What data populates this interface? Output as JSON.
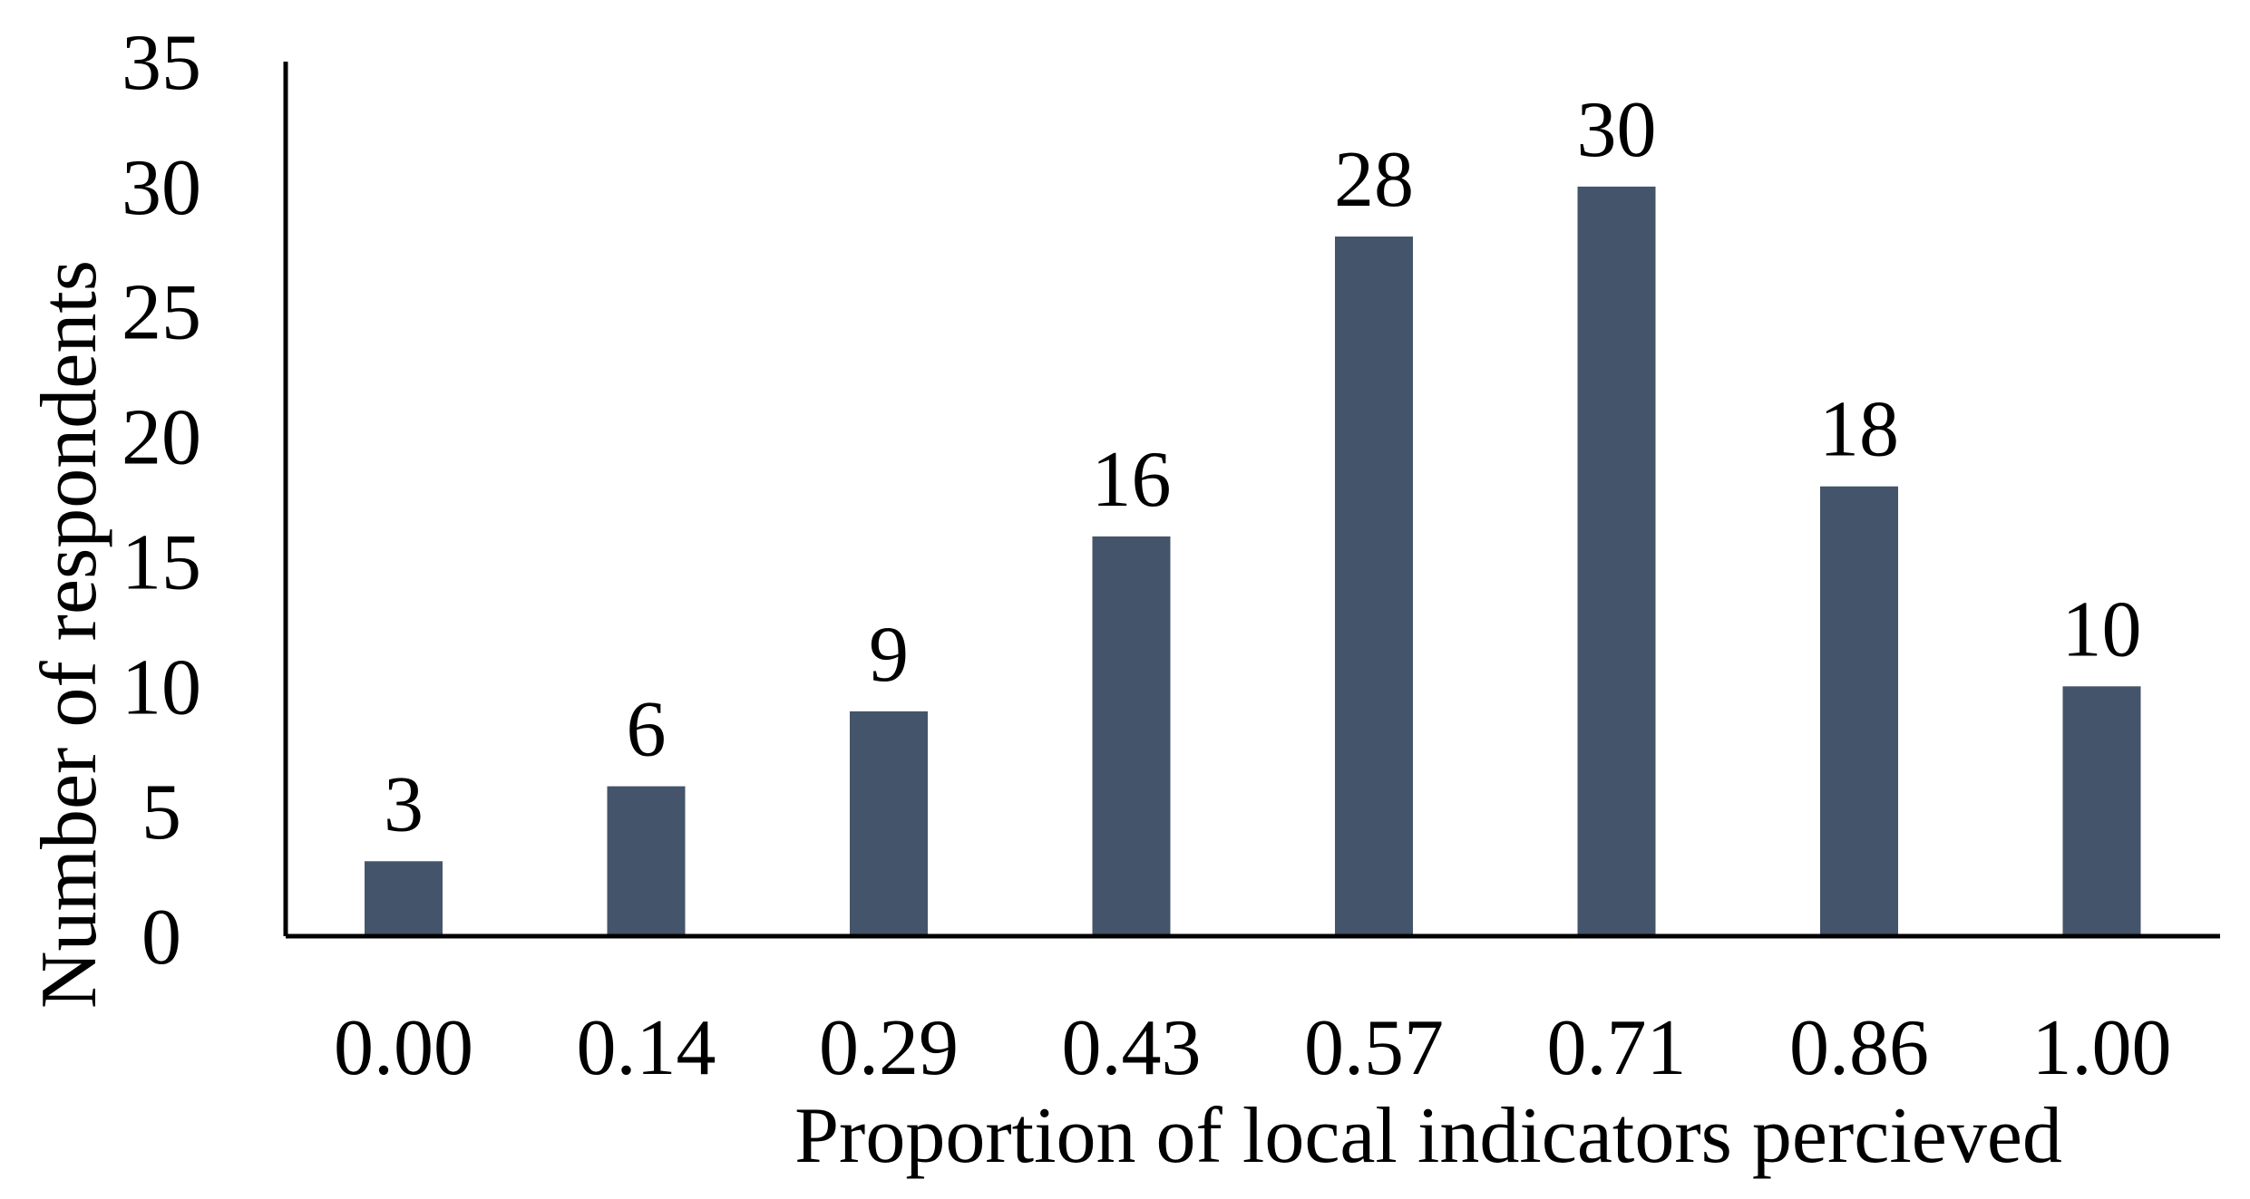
{
  "chart_data": {
    "type": "bar",
    "title": "",
    "xlabel": "Proportion of local indicators percieved",
    "ylabel": "Number of respondents",
    "categories": [
      "0.00",
      "0.14",
      "0.29",
      "0.43",
      "0.57",
      "0.71",
      "0.86",
      "1.00"
    ],
    "values": [
      3,
      6,
      9,
      16,
      28,
      30,
      18,
      10
    ],
    "data_labels": [
      "3",
      "6",
      "9",
      "16",
      "28",
      "30",
      "18",
      "10"
    ],
    "y_ticks": [
      "0",
      "5",
      "10",
      "15",
      "20",
      "25",
      "30",
      "35"
    ],
    "ylim": [
      0,
      35
    ],
    "grid": false,
    "legend": "none",
    "bar_color": "#44546a"
  }
}
